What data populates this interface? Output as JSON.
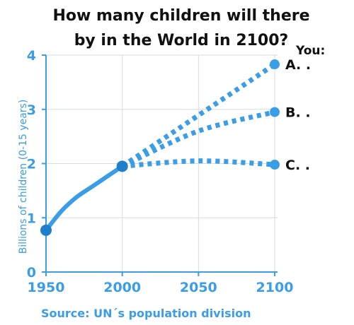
{
  "chart_data": {
    "type": "line",
    "title_lines": [
      "How many children will there",
      "by in the World in 2100?"
    ],
    "prompt_label": "You:",
    "ylabel": "Billions of children (0-15 years)",
    "source": "Source: UN´s population division",
    "xlim": [
      1950,
      2100
    ],
    "ylim": [
      0,
      4
    ],
    "x_ticks": [
      "1950",
      "2000",
      "2050",
      "2100"
    ],
    "y_ticks": [
      "0",
      "1",
      "2",
      "3",
      "4"
    ],
    "grid": true,
    "colors": {
      "series": "#3b9de6",
      "marker": "#1f7fcb",
      "title": "#111111",
      "grid": "#d3dde6"
    },
    "series": [
      {
        "x": [
          1950,
          1960,
          1970,
          1980,
          1990,
          2000
        ],
        "values": [
          0.77,
          1.12,
          1.38,
          1.57,
          1.76,
          1.95
        ],
        "style": "solid"
      },
      {
        "x": [
          2000,
          2100
        ],
        "values": [
          1.95,
          3.83
        ],
        "style": "dotted"
      },
      {
        "x": [
          2000,
          2050,
          2100
        ],
        "values": [
          1.95,
          2.6,
          2.95
        ],
        "style": "dotted"
      },
      {
        "x": [
          2000,
          2050,
          2100
        ],
        "values": [
          1.95,
          2.05,
          1.98
        ],
        "style": "dotted"
      }
    ],
    "endpoint_labels": [
      {
        "text": "A.  .",
        "x": 2100,
        "y": 3.83
      },
      {
        "text": "B.  .",
        "x": 2100,
        "y": 2.95
      },
      {
        "text": "C.  .",
        "x": 2100,
        "y": 1.98
      }
    ]
  }
}
